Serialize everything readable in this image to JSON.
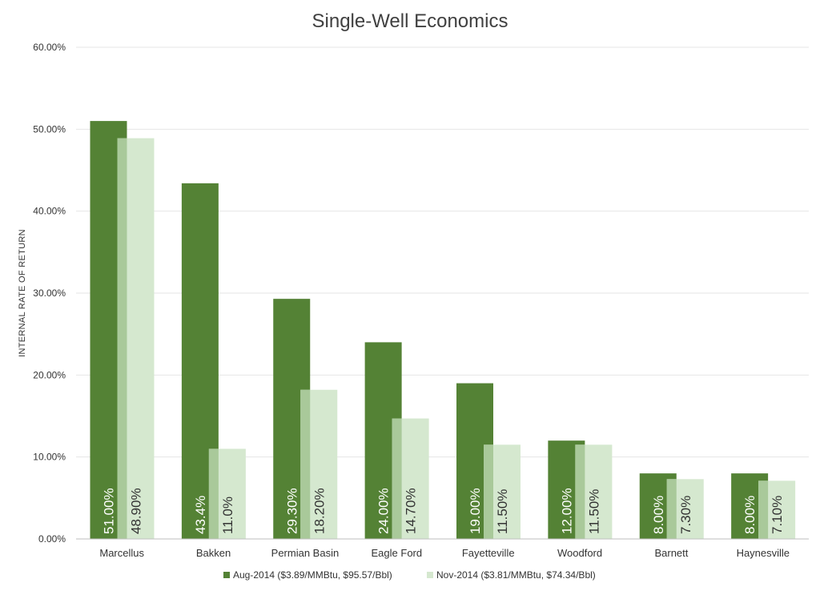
{
  "chart_data": {
    "type": "bar",
    "title": "Single-Well Economics",
    "xlabel": "",
    "ylabel": "INTERNAL RATE OF RETURN",
    "ylim": [
      0,
      60
    ],
    "yticks": [
      "0.00%",
      "10.00%",
      "20.00%",
      "30.00%",
      "40.00%",
      "50.00%",
      "60.00%"
    ],
    "grid": true,
    "legend_position": "bottom",
    "categories": [
      "Marcellus",
      "Bakken",
      "Permian Basin",
      "Eagle Ford",
      "Fayetteville",
      "Woodford",
      "Barnett",
      "Haynesville"
    ],
    "series": [
      {
        "name": "Aug-2014 ($3.89/MMBtu, $95.57/Bbl)",
        "color": "#548235",
        "label_color": "#ffffff",
        "values": [
          51.0,
          43.4,
          29.3,
          24.0,
          19.0,
          12.0,
          8.0,
          8.0
        ],
        "labels": [
          "51.00%",
          "43.4%",
          "29.30%",
          "24.00%",
          "19.00%",
          "12.00%",
          "8.00%",
          "8.00%"
        ]
      },
      {
        "name": "Nov-2014 ($3.81/MMBtu, $74.34/Bbl)",
        "color": "#d5e8cf",
        "overlap_color": "#a9c99a",
        "label_color": "#333333",
        "values": [
          48.9,
          11.0,
          18.2,
          14.7,
          11.5,
          11.5,
          7.3,
          7.1
        ],
        "labels": [
          "48.90%",
          "11.0%",
          "18.20%",
          "14.70%",
          "11.50%",
          "11.50%",
          "7.30%",
          "7.10%"
        ]
      }
    ]
  }
}
